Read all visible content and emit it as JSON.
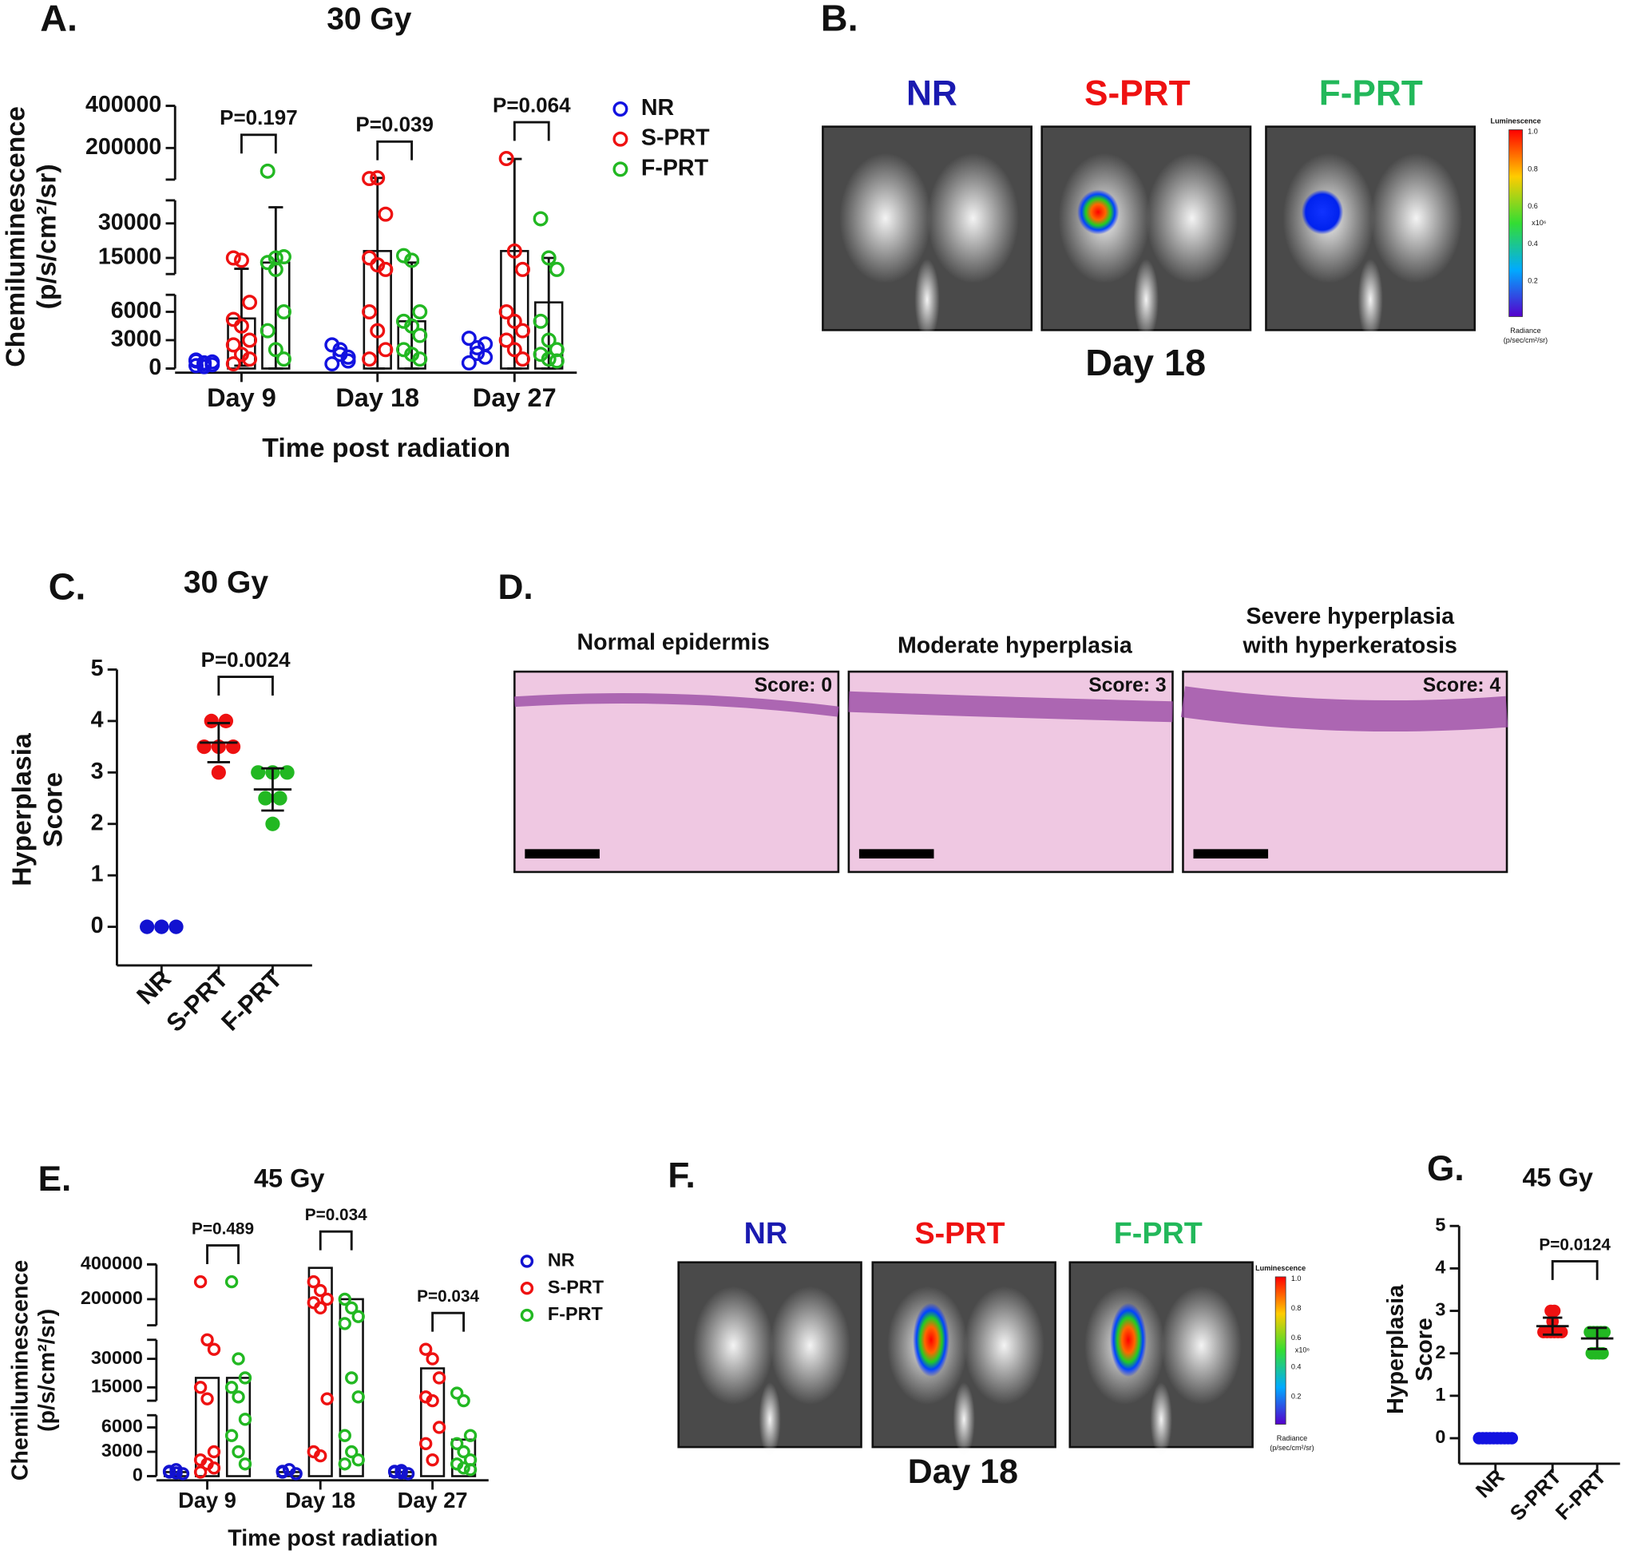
{
  "chart_data": [
    {
      "type": "dot_bar",
      "panel": "A.",
      "title": "30 Gy",
      "ylabel": [
        "Chemiluminescence",
        "(p/s/cm²/sr)"
      ],
      "xlabel": "Time post radiation",
      "categories": [
        "Day 9",
        "Day 18",
        "Day 27"
      ],
      "ysegments": [
        [
          0,
          7800
        ],
        [
          8000,
          40000
        ],
        [
          50000,
          400000
        ]
      ],
      "yticks": [
        0,
        3000,
        6000,
        15000,
        30000,
        200000,
        400000
      ],
      "series": [
        {
          "name": "NR",
          "color": "#1212e0",
          "points": [
            [
              300,
              500,
              700,
              900,
              600,
              400,
              800,
              200
            ],
            [
              2500,
              1500,
              800,
              500,
              2000,
              1200
            ],
            [
              3200,
              2200,
              1200,
              600,
              1600,
              2600
            ]
          ]
        },
        {
          "name": "S-PRT",
          "color": "#ee1111",
          "means": [
            5300,
            18000,
            18000
          ],
          "errors": [
            5000,
            40000,
            130000
          ],
          "points": [
            [
              15000,
              14000,
              7000,
              5200,
              4500,
              3000,
              2500,
              1500,
              1000,
              500
            ],
            [
              55000,
              58000,
              34000,
              15000,
              12000,
              10000,
              6000,
              4000,
              2000,
              1000
            ],
            [
              150000,
              18000,
              10000,
              6000,
              5000,
              4000,
              3000,
              2000,
              1000
            ]
          ]
        },
        {
          "name": "F-PRT",
          "color": "#22b822",
          "means": [
            13000,
            5000,
            7000
          ],
          "errors": [
            24000,
            8000,
            8000
          ],
          "points": [
            [
              90000,
              15000,
              15500,
              13000,
              10000,
              6000,
              4000,
              2000,
              1000
            ],
            [
              16000,
              14000,
              6000,
              5000,
              4500,
              3500,
              2000,
              1500,
              1000
            ],
            [
              32000,
              15000,
              10000,
              5000,
              3000,
              2000,
              1500,
              1000,
              800
            ]
          ]
        }
      ],
      "p_labels": [
        "P=0.197",
        "P=0.039",
        "P=0.064"
      ]
    },
    {
      "type": "dot",
      "panel": "C.",
      "title": "30 Gy",
      "ylabel": [
        "Hyperplasia",
        "Score"
      ],
      "categories": [
        "NR",
        "S-PRT",
        "F-PRT"
      ],
      "ylim": [
        -0.75,
        5
      ],
      "yticks": [
        0,
        1,
        2,
        3,
        4,
        5
      ],
      "groups": [
        {
          "color": "#1212d0",
          "values": [
            0,
            0,
            0
          ]
        },
        {
          "color": "#ee1111",
          "values": [
            4,
            4,
            3.5,
            3.5,
            3.5,
            3
          ],
          "mean": 3.58,
          "error": 0.38
        },
        {
          "color": "#22b822",
          "values": [
            3,
            3,
            2.5,
            2.5,
            2,
            3
          ],
          "mean": 2.67,
          "error": 0.41
        }
      ],
      "p_label": "P=0.0024"
    },
    {
      "type": "dot_bar",
      "panel": "E.",
      "title": "45 Gy",
      "ylabel": [
        "Chemiluminescence",
        "(p/s/cm²/sr)"
      ],
      "xlabel": "Time post radiation",
      "categories": [
        "Day 9",
        "Day 18",
        "Day 27"
      ],
      "ysegments": [
        [
          0,
          7500
        ],
        [
          8000,
          40000
        ],
        [
          50000,
          400000
        ]
      ],
      "yticks": [
        0,
        3000,
        6000,
        15000,
        30000,
        200000,
        400000
      ],
      "series": [
        {
          "name": "NR",
          "color": "#1212d0",
          "means": [
            500,
            500,
            500
          ],
          "points": [
            [
              500,
              800,
              300,
              600,
              400
            ],
            [
              500,
              800,
              300,
              600
            ],
            [
              500,
              700,
              300,
              600,
              400
            ]
          ]
        },
        {
          "name": "S-PRT",
          "color": "#ee1111",
          "means": [
            20000,
            380000,
            25000
          ],
          "points": [
            [
              300000,
              40000,
              35000,
              15000,
              9000,
              3000,
              2000,
              1500,
              1000,
              500
            ],
            [
              300000,
              250000,
              200000,
              180000,
              150000,
              9000,
              3000,
              2500
            ],
            [
              35000,
              30000,
              20000,
              10000,
              8000,
              6000,
              4000,
              2000
            ]
          ]
        },
        {
          "name": "F-PRT",
          "color": "#22b822",
          "means": [
            20000,
            200000,
            4500
          ],
          "points": [
            [
              300000,
              30000,
              20000,
              15000,
              10000,
              7000,
              5000,
              3000,
              1500
            ],
            [
              200000,
              150000,
              100000,
              60000,
              20000,
              10000,
              5000,
              3000,
              2000,
              1500
            ],
            [
              12000,
              8000,
              5000,
              4000,
              3000,
              2000,
              1500,
              1000,
              800
            ]
          ]
        }
      ],
      "p_labels": [
        "P=0.489",
        "P=0.034",
        "P=0.034"
      ]
    },
    {
      "type": "dot",
      "panel": "G.",
      "title": "45 Gy",
      "ylabel": [
        "Hyperplasia",
        "Score"
      ],
      "categories": [
        "NR",
        "S-PRT",
        "F-PRT"
      ],
      "ylim": [
        -0.6,
        5
      ],
      "yticks": [
        0,
        1,
        2,
        3,
        4,
        5
      ],
      "groups": [
        {
          "color": "#1212e0",
          "values": [
            0,
            0,
            0,
            0,
            0,
            0,
            0,
            0,
            0,
            0
          ]
        },
        {
          "color": "#ee1111",
          "values": [
            3,
            3,
            2.75,
            2.5,
            2.5,
            2.5,
            2.5,
            2.5,
            2.5
          ],
          "mean": 2.64,
          "error": 0.2
        },
        {
          "color": "#22b822",
          "values": [
            2.5,
            2.5,
            2.5,
            2.5,
            2.5,
            2,
            2,
            2,
            2
          ],
          "mean": 2.35,
          "error": 0.25
        }
      ],
      "p_label": "P=0.0124"
    }
  ],
  "images": [
    {
      "panel": "B.",
      "labels": [
        "NR",
        "S-PRT",
        "F-PRT"
      ],
      "caption": "Day 18",
      "colorbar": {
        "title": "Luminescence",
        "ticks": [
          "1.0",
          "0.8",
          "0.6",
          "0.4",
          "0.2"
        ],
        "unit": "x10⁶",
        "footer": [
          "Radiance",
          "(p/sec/cm²/sr)"
        ]
      }
    },
    {
      "panel": "D.",
      "titles": [
        [
          "Normal epidermis"
        ],
        [
          "Moderate hyperplasia"
        ],
        [
          "Severe hyperplasia",
          "with hyperkeratosis"
        ]
      ],
      "scores": [
        "Score: 0",
        "Score: 3",
        "Score: 4"
      ]
    },
    {
      "panel": "F.",
      "labels": [
        "NR",
        "S-PRT",
        "F-PRT"
      ],
      "caption": "Day 18",
      "colorbar": {
        "title": "Luminescence",
        "ticks": [
          "1.0",
          "0.8",
          "0.6",
          "0.4",
          "0.2"
        ],
        "unit": "x10⁶",
        "footer": [
          "Radiance",
          "(p/sec/cm²/sr)"
        ]
      }
    }
  ]
}
